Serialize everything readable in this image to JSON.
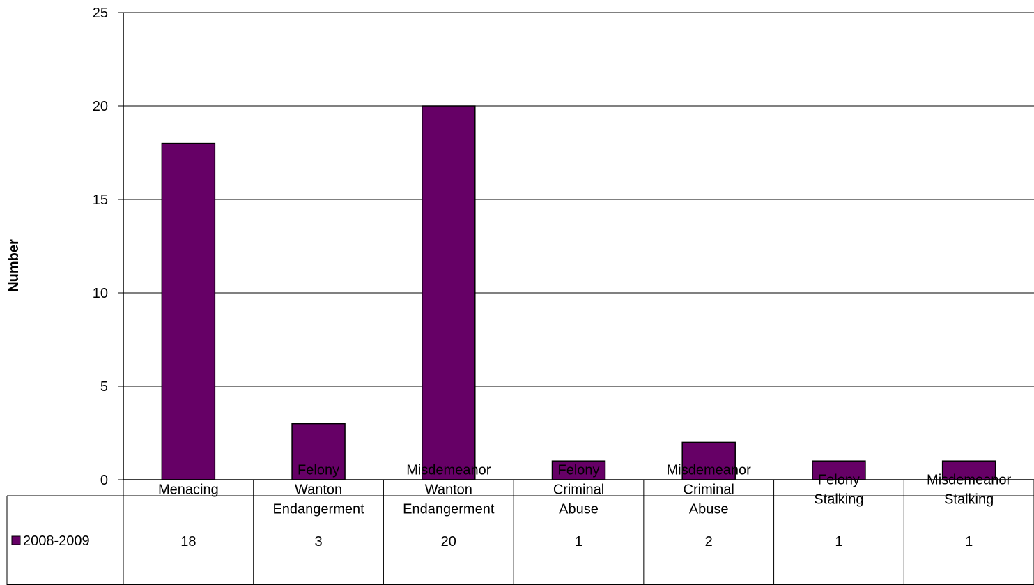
{
  "chart_data": {
    "type": "bar",
    "ylabel": "Number",
    "ylim": [
      0,
      25
    ],
    "yticks": [
      0,
      5,
      10,
      15,
      20,
      25
    ],
    "grid": true,
    "categories": [
      [
        "Menacing"
      ],
      [
        "Felony",
        "Wanton",
        "Endangerment"
      ],
      [
        "Misdemeanor",
        "Wanton",
        "Endangerment"
      ],
      [
        "Felony",
        "Criminal",
        "Abuse"
      ],
      [
        "Misdemeanor",
        "Criminal",
        "Abuse"
      ],
      [
        "Felony",
        "Stalking"
      ],
      [
        "Misdemeanor",
        "Stalking"
      ]
    ],
    "series": [
      {
        "name": "2008-2009",
        "color": "#660066",
        "values": [
          18,
          3,
          20,
          1,
          2,
          1,
          1
        ]
      }
    ],
    "legend_placement": "data-table"
  }
}
